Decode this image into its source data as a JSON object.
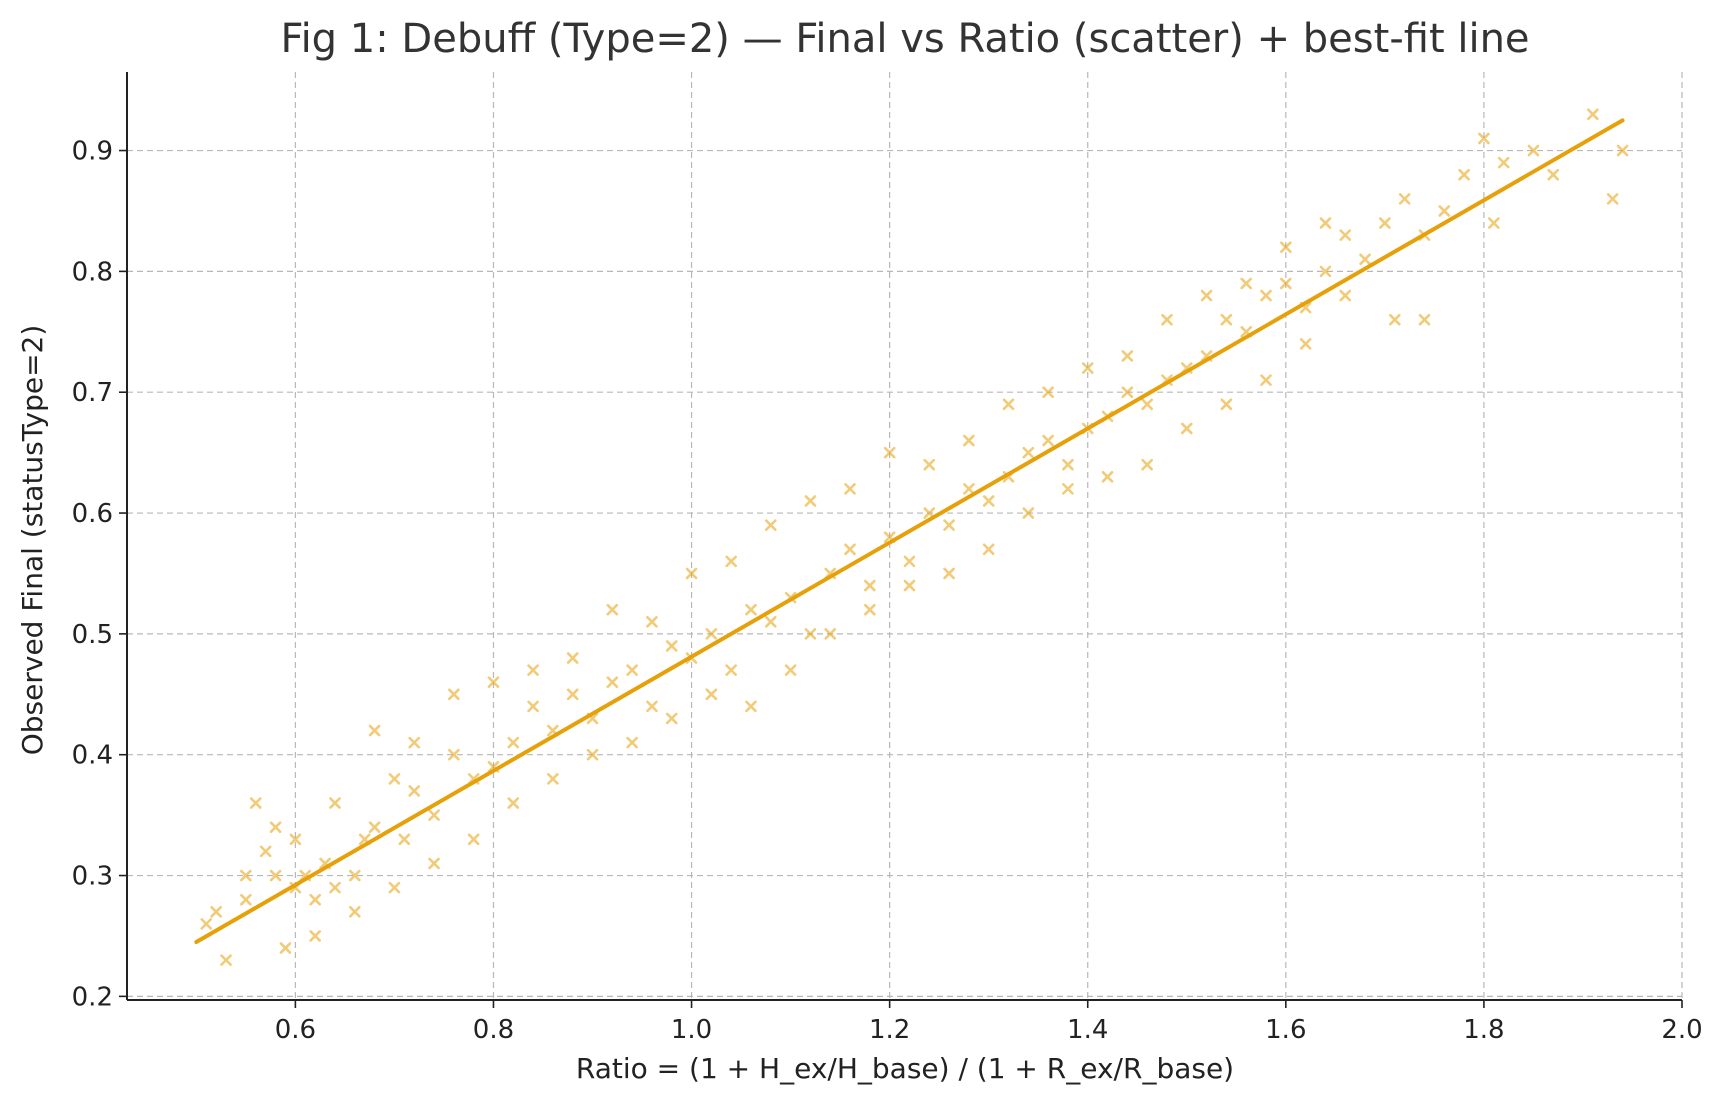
{
  "chart_data": {
    "type": "scatter",
    "title": "Fig 1: Debuff (Type=2) — Final vs Ratio (scatter) + best-fit line",
    "xlabel": "Ratio = (1 + H_ex/H_base) / (1 + R_ex/R_base)",
    "ylabel": "Observed Final (statusType=2)",
    "xlim": [
      0.43,
      2.0
    ],
    "ylim": [
      0.197,
      0.965
    ],
    "xticks": [
      0.6,
      0.8,
      1.0,
      1.2,
      1.4,
      1.6,
      1.8,
      2.0
    ],
    "xtick_labels": [
      "0.6",
      "0.8",
      "1.0",
      "1.2",
      "1.4",
      "1.6",
      "1.8",
      "2.0"
    ],
    "yticks": [
      0.2,
      0.3,
      0.4,
      0.5,
      0.6,
      0.7,
      0.8,
      0.9
    ],
    "ytick_labels": [
      "0.2",
      "0.3",
      "0.4",
      "0.5",
      "0.6",
      "0.7",
      "0.8",
      "0.9"
    ],
    "grid": true,
    "marker": "x",
    "color": "#E6A10A",
    "fit_line": {
      "x": [
        0.5,
        1.94
      ],
      "y": [
        0.245,
        0.925
      ]
    },
    "points": {
      "x": [
        0.51,
        0.52,
        0.53,
        0.55,
        0.56,
        0.57,
        0.58,
        0.59,
        0.6,
        0.61,
        0.62,
        0.63,
        0.64,
        0.66,
        0.67,
        0.68,
        0.7,
        0.71,
        0.72,
        0.74,
        0.76,
        0.78,
        0.8,
        0.82,
        0.84,
        0.86,
        0.88,
        0.9,
        0.92,
        0.94,
        0.96,
        0.98,
        1.0,
        1.02,
        1.04,
        1.06,
        1.08,
        1.1,
        1.12,
        1.14,
        1.16,
        1.18,
        1.2,
        1.22,
        1.24,
        1.26,
        1.28,
        1.3,
        1.32,
        1.34,
        1.36,
        1.38,
        1.4,
        1.42,
        1.44,
        1.46,
        1.48,
        1.5,
        1.52,
        1.54,
        1.56,
        1.58,
        1.6,
        1.62,
        1.64,
        1.66,
        1.68,
        1.7,
        1.72,
        1.74,
        1.76,
        1.78,
        1.8,
        1.82,
        1.85,
        1.87,
        1.91,
        1.93,
        1.94,
        0.55,
        0.58,
        0.62,
        0.66,
        0.7,
        0.74,
        0.78,
        0.82,
        0.86,
        0.9,
        0.94,
        0.98,
        1.02,
        1.06,
        1.1,
        1.14,
        1.18,
        1.22,
        1.26,
        1.3,
        1.34,
        1.38,
        1.42,
        1.46,
        1.5,
        1.54,
        1.58,
        1.62,
        1.66,
        0.6,
        0.64,
        0.68,
        0.72,
        0.76,
        0.8,
        0.84,
        0.88,
        0.92,
        0.96,
        1.0,
        1.04,
        1.08,
        1.12,
        1.16,
        1.2,
        1.24,
        1.28,
        1.32,
        1.36,
        1.4,
        1.44,
        1.48,
        1.52,
        1.56,
        1.6,
        1.64,
        1.71,
        1.74,
        1.81
      ],
      "y": [
        0.26,
        0.27,
        0.23,
        0.28,
        0.36,
        0.32,
        0.3,
        0.24,
        0.29,
        0.3,
        0.28,
        0.31,
        0.36,
        0.3,
        0.33,
        0.34,
        0.38,
        0.33,
        0.37,
        0.35,
        0.4,
        0.38,
        0.39,
        0.41,
        0.44,
        0.42,
        0.45,
        0.43,
        0.46,
        0.47,
        0.44,
        0.49,
        0.48,
        0.5,
        0.47,
        0.52,
        0.51,
        0.53,
        0.5,
        0.55,
        0.57,
        0.54,
        0.58,
        0.56,
        0.6,
        0.59,
        0.62,
        0.61,
        0.63,
        0.65,
        0.66,
        0.64,
        0.67,
        0.68,
        0.7,
        0.69,
        0.71,
        0.72,
        0.73,
        0.76,
        0.75,
        0.78,
        0.79,
        0.77,
        0.8,
        0.83,
        0.81,
        0.84,
        0.86,
        0.83,
        0.85,
        0.88,
        0.91,
        0.89,
        0.9,
        0.88,
        0.93,
        0.86,
        0.9,
        0.3,
        0.34,
        0.25,
        0.27,
        0.29,
        0.31,
        0.33,
        0.36,
        0.38,
        0.4,
        0.41,
        0.43,
        0.45,
        0.44,
        0.47,
        0.5,
        0.52,
        0.54,
        0.55,
        0.57,
        0.6,
        0.62,
        0.63,
        0.64,
        0.67,
        0.69,
        0.71,
        0.74,
        0.78,
        0.33,
        0.29,
        0.42,
        0.41,
        0.45,
        0.46,
        0.47,
        0.48,
        0.52,
        0.51,
        0.55,
        0.56,
        0.59,
        0.61,
        0.62,
        0.65,
        0.64,
        0.66,
        0.69,
        0.7,
        0.72,
        0.73,
        0.76,
        0.78,
        0.79,
        0.82,
        0.84,
        0.76,
        0.76,
        0.84
      ]
    }
  }
}
